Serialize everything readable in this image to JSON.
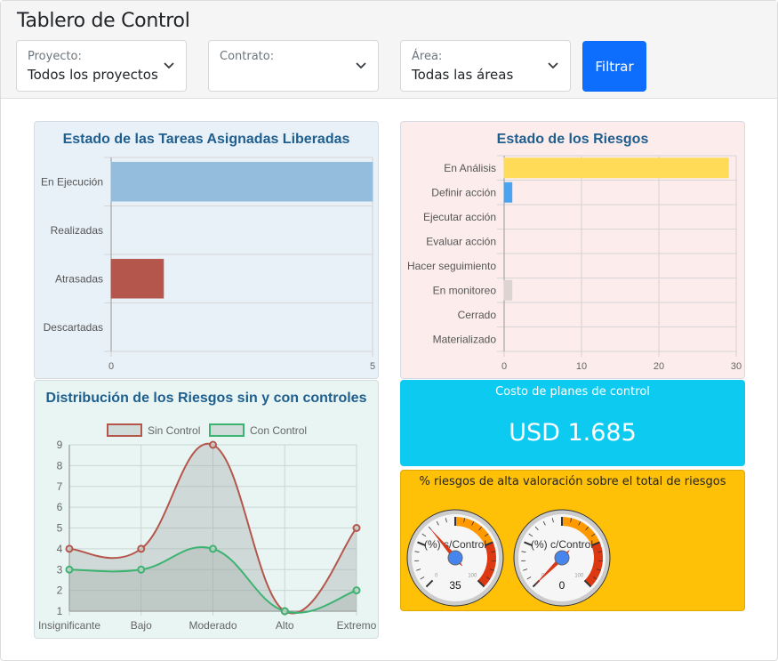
{
  "header": {
    "title": "Tablero de Control",
    "filters": [
      {
        "label": "Proyecto:",
        "value": "Todos los proyectos"
      },
      {
        "label": "Contrato:",
        "value": ""
      },
      {
        "label": "Área:",
        "value": "Todas las áreas"
      }
    ],
    "filter_button": "Filtrar"
  },
  "cards": {
    "tasks": {
      "title": "Estado de las Tareas Asignadas Liberadas",
      "categories": [
        "En Ejecución",
        "Realizadas",
        "Atrasadas",
        "Descartadas"
      ],
      "values": [
        5,
        0,
        1,
        0
      ],
      "colors": [
        "#94bcdd",
        "#94bcdd",
        "#b5564c",
        "#94bcdd"
      ],
      "ticks": [
        "0",
        "5"
      ]
    },
    "risks": {
      "title": "Estado de los Riesgos",
      "categories": [
        "En Análisis",
        "Definir acción",
        "Ejecutar acción",
        "Evaluar acción",
        "Hacer seguimiento",
        "En monitoreo",
        "Cerrado",
        "Materializado"
      ],
      "values": [
        29,
        1,
        0,
        0,
        0,
        1,
        0,
        0
      ],
      "colors": [
        "#ffdb58",
        "#4aa3ee",
        "#ccc",
        "#ccc",
        "#ccc",
        "#dcd3d3",
        "#ccc",
        "#ccc"
      ],
      "ticks": [
        "0",
        "10",
        "20",
        "30"
      ]
    },
    "distribution": {
      "title": "Distribución de los Riesgos sin y con controles",
      "legend": [
        "Sin Control",
        "Con Control"
      ],
      "x_labels": [
        "Insignificante",
        "Bajo",
        "Moderado",
        "Alto",
        "Extremo"
      ],
      "y_ticks": [
        "1",
        "2",
        "3",
        "4",
        "5",
        "6",
        "7",
        "8",
        "9"
      ]
    },
    "cost": {
      "title": "Costo de planes de control",
      "value": "USD 1.685",
      "color": "#0dcaf0"
    },
    "gauges": {
      "title": "% riesgos de alta valoración sobre el total de riesgos",
      "color": "#ffc107",
      "items": [
        {
          "label": "(%) s/Control",
          "value": "35",
          "min": "0",
          "max": "100"
        },
        {
          "label": "(%) c/Control",
          "value": "0",
          "min": "0",
          "max": "100"
        }
      ]
    }
  },
  "chart_data": [
    {
      "type": "bar",
      "orientation": "horizontal",
      "title": "Estado de las Tareas Asignadas Liberadas",
      "categories": [
        "En Ejecución",
        "Realizadas",
        "Atrasadas",
        "Descartadas"
      ],
      "values": [
        5,
        0,
        1,
        0
      ],
      "xlim": [
        0,
        5
      ]
    },
    {
      "type": "bar",
      "orientation": "horizontal",
      "title": "Estado de los Riesgos",
      "categories": [
        "En Análisis",
        "Definir acción",
        "Ejecutar acción",
        "Evaluar acción",
        "Hacer seguimiento",
        "En monitoreo",
        "Cerrado",
        "Materializado"
      ],
      "values": [
        29,
        1,
        0,
        0,
        0,
        1,
        0,
        0
      ],
      "xlim": [
        0,
        30
      ]
    },
    {
      "type": "area",
      "title": "Distribución de los Riesgos sin y con controles",
      "categories": [
        "Insignificante",
        "Bajo",
        "Moderado",
        "Alto",
        "Extremo"
      ],
      "series": [
        {
          "name": "Sin Control",
          "values": [
            4,
            4,
            9,
            1,
            5
          ],
          "color": "#b5564c"
        },
        {
          "name": "Con Control",
          "values": [
            3,
            3,
            4,
            1,
            2
          ],
          "color": "#3cb371"
        }
      ],
      "ylim": [
        1,
        9
      ],
      "legend_position": "top"
    },
    {
      "type": "gauge",
      "title": "% riesgos de alta valoración sobre el total de riesgos",
      "series": [
        {
          "name": "(%) s/Control",
          "value": 35
        },
        {
          "name": "(%) c/Control",
          "value": 0
        }
      ],
      "range": [
        0,
        100
      ]
    }
  ]
}
